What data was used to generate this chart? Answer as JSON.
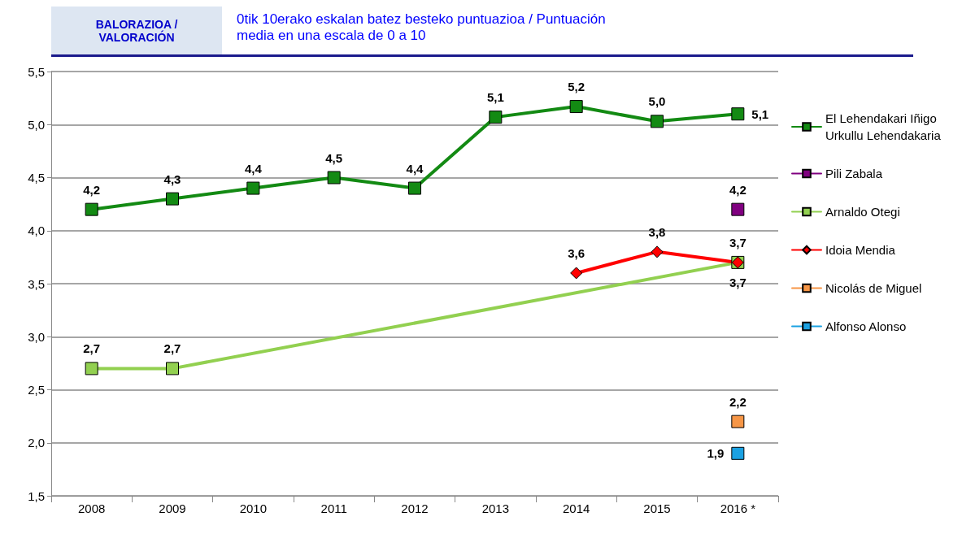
{
  "chart_data": {
    "type": "line",
    "title": "BALORAZIOA / VALORACIÓN",
    "subtitle": "0tik 10erako eskalan batez besteko puntuazioa / Puntuación media en una escala de 0 a 10",
    "categories": [
      "2008",
      "2009",
      "2010",
      "2011",
      "2012",
      "2013",
      "2014",
      "2015",
      "2016 *"
    ],
    "series": [
      {
        "name": "El Lehendakari Iñigo Urkullu Lehendakaria",
        "color": "#138a13",
        "marker": "square",
        "values": [
          4.2,
          4.3,
          4.4,
          4.5,
          4.4,
          5.07,
          5.17,
          5.03,
          5.1
        ],
        "value_labels": [
          "4,2",
          "4,3",
          "4,4",
          "4,5",
          "4,4",
          "5,1",
          "5,2",
          "5,0",
          "5,1"
        ]
      },
      {
        "name": "Pili Zabala",
        "color": "#800080",
        "marker": "square",
        "values": [
          null,
          null,
          null,
          null,
          null,
          null,
          null,
          null,
          4.2
        ],
        "value_labels": [
          null,
          null,
          null,
          null,
          null,
          null,
          null,
          null,
          "4,2"
        ]
      },
      {
        "name": "Arnaldo Otegi",
        "color": "#92d050",
        "marker": "square",
        "values": [
          2.7,
          2.7,
          null,
          null,
          null,
          null,
          null,
          null,
          3.7
        ],
        "value_labels": [
          "2,7",
          "2,7",
          null,
          null,
          null,
          null,
          null,
          null,
          "3,7"
        ]
      },
      {
        "name": "Idoia Mendia",
        "color": "#ff0000",
        "marker": "diamond",
        "values": [
          null,
          null,
          null,
          null,
          null,
          null,
          3.6,
          3.8,
          3.7
        ],
        "value_labels": [
          null,
          null,
          null,
          null,
          null,
          null,
          "3,6",
          "3,8",
          "3,7"
        ]
      },
      {
        "name": "Nicolás de Miguel",
        "color": "#f79646",
        "marker": "square",
        "values": [
          null,
          null,
          null,
          null,
          null,
          null,
          null,
          null,
          2.2
        ],
        "value_labels": [
          null,
          null,
          null,
          null,
          null,
          null,
          null,
          null,
          "2,2"
        ]
      },
      {
        "name": "Alfonso Alonso",
        "color": "#1ba1e2",
        "marker": "square",
        "values": [
          null,
          null,
          null,
          null,
          null,
          null,
          null,
          null,
          1.9
        ],
        "value_labels": [
          null,
          null,
          null,
          null,
          null,
          null,
          null,
          null,
          "1,9"
        ]
      }
    ],
    "ylim": [
      1.5,
      5.5
    ],
    "yticks": [
      {
        "value": 1.5,
        "label": "1,5"
      },
      {
        "value": 2.0,
        "label": "2,0"
      },
      {
        "value": 2.5,
        "label": "2,5"
      },
      {
        "value": 3.0,
        "label": "3,0"
      },
      {
        "value": 3.5,
        "label": "3,5"
      },
      {
        "value": 4.0,
        "label": "4,0"
      },
      {
        "value": 4.5,
        "label": "4,5"
      },
      {
        "value": 5.0,
        "label": "5,0"
      },
      {
        "value": 5.5,
        "label": "5,5"
      }
    ],
    "grid": "y",
    "legend": "right"
  }
}
